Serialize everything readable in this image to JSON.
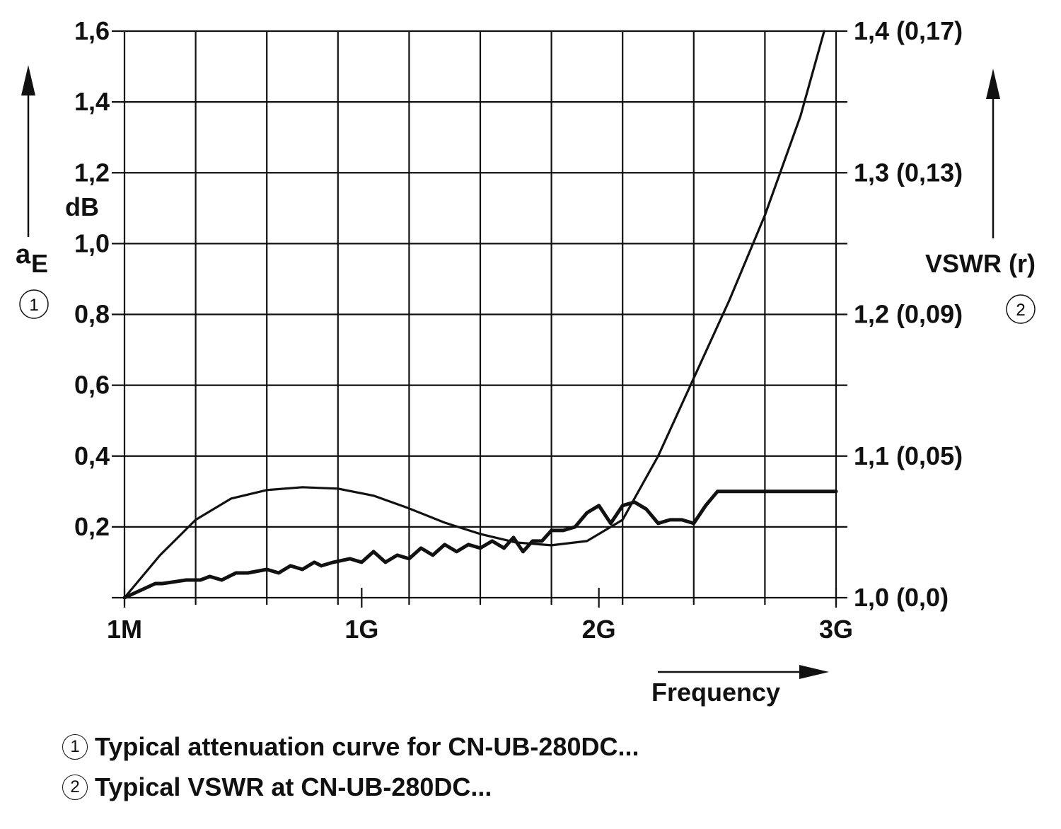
{
  "chart_data": {
    "type": "line",
    "x_ticks": [
      "1M",
      "1G",
      "2G",
      "3G"
    ],
    "x_tick_values": [
      0,
      1,
      2,
      3
    ],
    "xlabel": "Frequency",
    "xlim": [
      0,
      3
    ],
    "left_axis": {
      "label_symbol": "a",
      "label_subscript": "E",
      "unit": "dB",
      "marker": "1",
      "ylim": [
        0,
        1.6
      ],
      "ticks": [
        "1,6",
        "1,4",
        "1,2",
        "1,0",
        "0,8",
        "0,6",
        "0,4",
        "0,2"
      ],
      "tick_values": [
        1.6,
        1.4,
        1.2,
        1.0,
        0.8,
        0.6,
        0.4,
        0.2
      ]
    },
    "right_axis": {
      "label": "VSWR (r)",
      "marker": "2",
      "ylim": [
        1.0,
        1.4
      ],
      "ticks": [
        "1,4 (0,17)",
        "1,3 (0,13)",
        "1,2 (0,09)",
        "1,1 (0,05)",
        "1,0 (0,0)"
      ],
      "tick_values": [
        1.4,
        1.3,
        1.2,
        1.1,
        1.0
      ]
    },
    "grid": true,
    "series": [
      {
        "axis": "left",
        "marker": "1",
        "x": [
          0.0,
          0.13,
          0.16,
          0.26,
          0.32,
          0.36,
          0.41,
          0.47,
          0.52,
          0.6,
          0.65,
          0.7,
          0.75,
          0.8,
          0.83,
          0.88,
          0.95,
          1.0,
          1.05,
          1.1,
          1.15,
          1.2,
          1.25,
          1.3,
          1.35,
          1.4,
          1.45,
          1.5,
          1.55,
          1.6,
          1.64,
          1.68,
          1.72,
          1.76,
          1.8,
          1.85,
          1.9,
          1.95,
          2.0,
          2.05,
          2.1,
          2.15,
          2.2,
          2.25,
          2.3,
          2.35,
          2.4,
          2.45,
          2.5,
          2.55,
          2.6,
          2.65,
          2.7,
          2.75,
          2.8,
          2.85,
          2.9,
          2.95,
          3.0
        ],
        "y": [
          0.0,
          0.04,
          0.04,
          0.05,
          0.05,
          0.06,
          0.05,
          0.07,
          0.07,
          0.08,
          0.07,
          0.09,
          0.08,
          0.1,
          0.09,
          0.1,
          0.11,
          0.1,
          0.13,
          0.1,
          0.12,
          0.11,
          0.14,
          0.12,
          0.15,
          0.13,
          0.15,
          0.14,
          0.16,
          0.14,
          0.17,
          0.13,
          0.16,
          0.16,
          0.19,
          0.19,
          0.2,
          0.24,
          0.26,
          0.21,
          0.26,
          0.27,
          0.25,
          0.21,
          0.22,
          0.22,
          0.21,
          0.26,
          0.3,
          0.3,
          0.3,
          0.3,
          0.3,
          0.3,
          0.3,
          0.3,
          0.3,
          0.3,
          0.3
        ]
      },
      {
        "axis": "right",
        "marker": "2",
        "x": [
          0.0,
          0.15,
          0.3,
          0.45,
          0.6,
          0.75,
          0.9,
          1.05,
          1.2,
          1.35,
          1.5,
          1.65,
          1.8,
          1.95,
          2.1,
          2.25,
          2.4,
          2.55,
          2.7,
          2.85,
          2.95
        ],
        "y": [
          1.0,
          1.03,
          1.055,
          1.07,
          1.076,
          1.078,
          1.077,
          1.072,
          1.063,
          1.053,
          1.045,
          1.039,
          1.037,
          1.04,
          1.055,
          1.1,
          1.155,
          1.21,
          1.27,
          1.34,
          1.4
        ]
      }
    ],
    "legend": [
      {
        "marker": "1",
        "text": "Typical attenuation curve for CN-UB-280DC..."
      },
      {
        "marker": "2",
        "text": "Typical VSWR at CN-UB-280DC..."
      }
    ]
  }
}
